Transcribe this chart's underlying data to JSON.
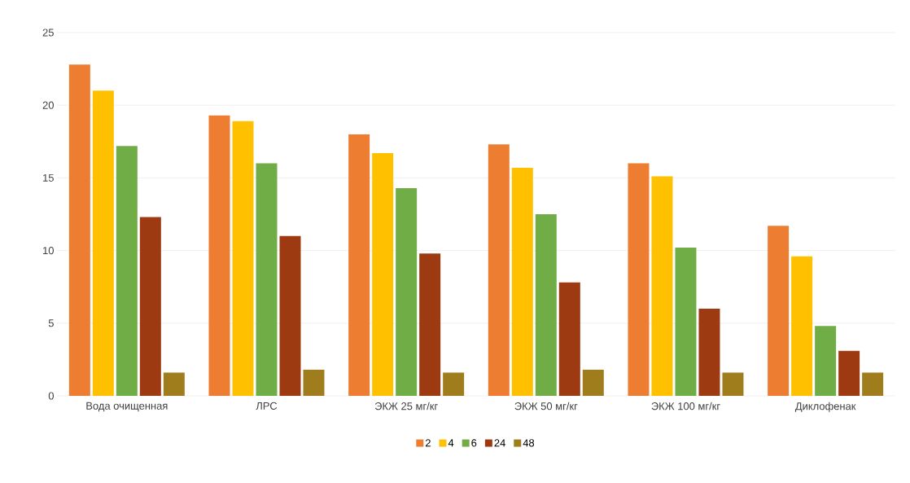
{
  "chart_data": {
    "type": "bar",
    "categories": [
      "Вода очищенная",
      "ЛРС",
      "ЭКЖ 25 мг/кг",
      "ЭКЖ 50 мг/кг",
      "ЭКЖ 100 мг/кг",
      "Диклофенак"
    ],
    "series": [
      {
        "name": "2",
        "color": "#ed7d31",
        "values": [
          22.8,
          19.3,
          18.0,
          17.3,
          16.0,
          11.7
        ]
      },
      {
        "name": "4",
        "color": "#ffc000",
        "values": [
          21.0,
          18.9,
          16.7,
          15.7,
          15.1,
          9.6
        ]
      },
      {
        "name": "6",
        "color": "#70ad47",
        "values": [
          17.2,
          16.0,
          14.3,
          12.5,
          10.2,
          4.8
        ]
      },
      {
        "name": "24",
        "color": "#9e3a12",
        "values": [
          12.3,
          11.0,
          9.8,
          7.8,
          6.0,
          3.1
        ]
      },
      {
        "name": "48",
        "color": "#a07d1c",
        "values": [
          1.6,
          1.8,
          1.6,
          1.8,
          1.6,
          1.6
        ]
      }
    ],
    "ylim": [
      0,
      25
    ],
    "yticks": [
      0,
      5,
      10,
      15,
      20,
      25
    ],
    "grid": "y",
    "legend": "bottom"
  }
}
